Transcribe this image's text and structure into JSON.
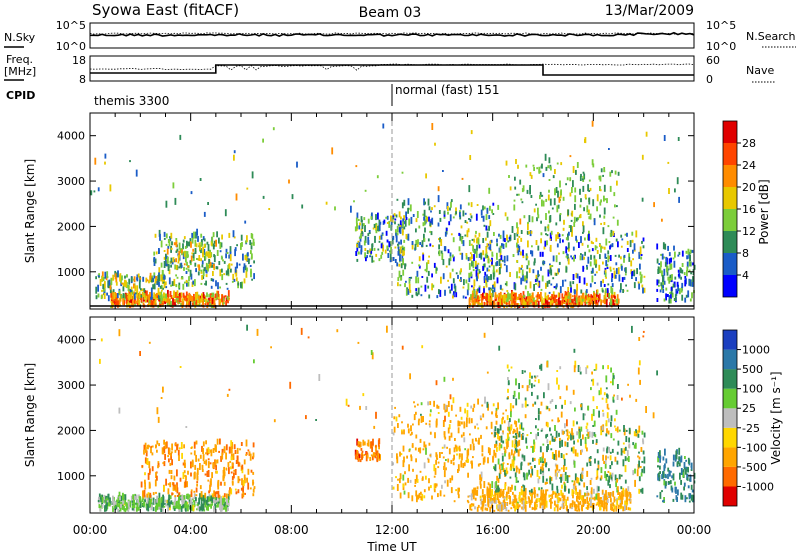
{
  "header": {
    "radar": "Syowa East (fitACF)",
    "beam": "Beam 03",
    "date": "13/Mar/2009"
  },
  "noise_panel": {
    "left_label": "N.Sky",
    "left_ticks": [
      "10^5",
      "10^0"
    ],
    "right_label": "N.Search",
    "right_ticks": [
      "10^5",
      "10^0"
    ]
  },
  "freq_panel": {
    "left_label_line1": "Freq.",
    "left_label_line2": "[MHz]",
    "left_ticks": [
      "18",
      "8"
    ],
    "right_label": "Nave",
    "right_ticks": [
      "60",
      "0"
    ]
  },
  "cpid_panel": {
    "label": "CPID",
    "programs": [
      {
        "name": "themis 3300",
        "start": "00:00",
        "end": "12:00"
      },
      {
        "name": "normal (fast) 151",
        "start": "12:00",
        "end": "24:00"
      }
    ]
  },
  "x_axis": {
    "label": "Time UT",
    "ticks": [
      "00:00",
      "04:00",
      "08:00",
      "12:00",
      "16:00",
      "20:00",
      "00:00"
    ]
  },
  "power_colorbar": {
    "title": "Power [dB]",
    "labels": [
      "4",
      "8",
      "12",
      "16",
      "20",
      "24",
      "28"
    ],
    "colors": [
      "#0000ff",
      "#1a5cc7",
      "#2e8b57",
      "#7ccd3a",
      "#e8c800",
      "#ff8c00",
      "#ff4500",
      "#e00000"
    ]
  },
  "velocity_colorbar": {
    "title": "Velocity [m s⁻¹]",
    "labels": [
      "1000",
      "500",
      "100",
      "25",
      "-25",
      "-100",
      "-500",
      "-1000"
    ],
    "colors": [
      "#1b3fbf",
      "#2b78a8",
      "#2e8b57",
      "#66cc33",
      "#bebebe",
      "#ffd700",
      "#ffa500",
      "#ff6a00",
      "#e00000"
    ]
  },
  "chart_data": [
    {
      "type": "heatmap",
      "title": "Power",
      "xlabel": "Time UT",
      "ylabel": "Slant Range [km]",
      "xlim": [
        0,
        24
      ],
      "ylim": [
        180,
        4500
      ],
      "yticks": [
        "1000",
        "2000",
        "3000",
        "4000"
      ],
      "zlim": [
        0,
        30
      ],
      "clusters": [
        {
          "t0": 0.8,
          "t1": 5.5,
          "r0": 200,
          "r1": 450,
          "count": 380,
          "vmin": 14,
          "vmax": 30
        },
        {
          "t0": 0.2,
          "t1": 3.0,
          "r0": 350,
          "r1": 900,
          "count": 160,
          "vmin": 4,
          "vmax": 22
        },
        {
          "t0": 2.5,
          "t1": 6.5,
          "r0": 600,
          "r1": 1800,
          "count": 240,
          "vmin": 4,
          "vmax": 18
        },
        {
          "t0": 3.0,
          "t1": 5.0,
          "r0": 1000,
          "r1": 1600,
          "count": 90,
          "vmin": 8,
          "vmax": 24
        },
        {
          "t0": 10.5,
          "t1": 12.5,
          "r0": 1200,
          "r1": 2200,
          "count": 140,
          "vmin": 2,
          "vmax": 20
        },
        {
          "t0": 12.0,
          "t1": 16.0,
          "r0": 400,
          "r1": 2500,
          "count": 320,
          "vmin": 2,
          "vmax": 20
        },
        {
          "t0": 15.0,
          "t1": 21.0,
          "r0": 200,
          "r1": 450,
          "count": 460,
          "vmin": 14,
          "vmax": 30
        },
        {
          "t0": 15.0,
          "t1": 22.0,
          "r0": 500,
          "r1": 1800,
          "count": 420,
          "vmin": 2,
          "vmax": 20
        },
        {
          "t0": 16.5,
          "t1": 21.0,
          "r0": 1800,
          "r1": 3400,
          "count": 180,
          "vmin": 8,
          "vmax": 18
        },
        {
          "t0": 22.5,
          "t1": 24.0,
          "r0": 300,
          "r1": 1500,
          "count": 130,
          "vmin": 2,
          "vmax": 16
        },
        {
          "t0": 0.0,
          "t1": 24.0,
          "r0": 2000,
          "r1": 4200,
          "count": 90,
          "vmin": 4,
          "vmax": 22
        }
      ]
    },
    {
      "type": "heatmap",
      "title": "Velocity",
      "xlabel": "Time UT",
      "ylabel": "Slant Range [km]",
      "xlim": [
        0,
        24
      ],
      "ylim": [
        180,
        4500
      ],
      "yticks": [
        "1000",
        "2000",
        "3000",
        "4000"
      ],
      "zlim": [
        -1200,
        1200
      ],
      "clusters": [
        {
          "t0": 0.3,
          "t1": 5.5,
          "r0": 200,
          "r1": 500,
          "count": 420,
          "vmin": -30,
          "vmax": 150
        },
        {
          "t0": 2.0,
          "t1": 6.5,
          "r0": 500,
          "r1": 1700,
          "count": 300,
          "vmin": -700,
          "vmax": -50
        },
        {
          "t0": 10.5,
          "t1": 11.5,
          "r0": 1300,
          "r1": 1700,
          "count": 60,
          "vmin": -1100,
          "vmax": -300
        },
        {
          "t0": 12.0,
          "t1": 17.0,
          "r0": 400,
          "r1": 2600,
          "count": 360,
          "vmin": -500,
          "vmax": 50
        },
        {
          "t0": 15.0,
          "t1": 21.5,
          "r0": 200,
          "r1": 600,
          "count": 440,
          "vmin": -400,
          "vmax": 30
        },
        {
          "t0": 16.0,
          "t1": 22.0,
          "r0": 600,
          "r1": 2000,
          "count": 380,
          "vmin": -300,
          "vmax": 400
        },
        {
          "t0": 16.5,
          "t1": 21.0,
          "r0": 1800,
          "r1": 3400,
          "count": 160,
          "vmin": -150,
          "vmax": 200
        },
        {
          "t0": 22.5,
          "t1": 24.0,
          "r0": 400,
          "r1": 1500,
          "count": 120,
          "vmin": 50,
          "vmax": 900
        },
        {
          "t0": 0.0,
          "t1": 24.0,
          "r0": 2000,
          "r1": 4200,
          "count": 80,
          "vmin": -700,
          "vmax": 300
        }
      ]
    }
  ]
}
